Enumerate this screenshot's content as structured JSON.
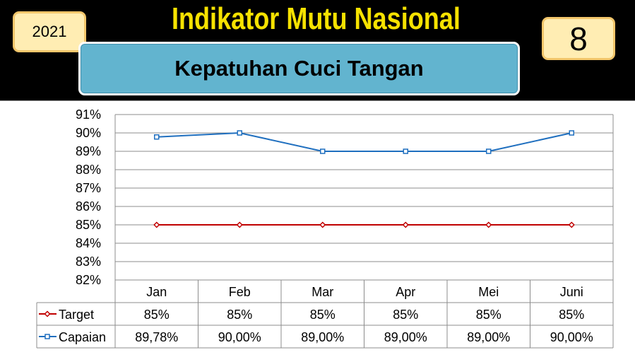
{
  "header": {
    "title": "Indikator Mutu Nasional",
    "year": "2021",
    "number": "8",
    "subtitle": "Kepatuhan Cuci Tangan"
  },
  "chart_data": {
    "type": "line",
    "categories": [
      "Jan",
      "Feb",
      "Mar",
      "Apr",
      "Mei",
      "Juni"
    ],
    "ylim": [
      82,
      91
    ],
    "yticks": [
      "82%",
      "83%",
      "84%",
      "85%",
      "86%",
      "87%",
      "88%",
      "89%",
      "90%",
      "91%"
    ],
    "grid": true,
    "legend": "data-table",
    "series": [
      {
        "name": "Target",
        "values": [
          85,
          85,
          85,
          85,
          85,
          85
        ],
        "labels": [
          "85%",
          "85%",
          "85%",
          "85%",
          "85%",
          "85%"
        ],
        "color": "#c00000",
        "marker": "diamond"
      },
      {
        "name": "Capaian",
        "values": [
          89.78,
          90,
          89,
          89,
          89,
          90
        ],
        "labels": [
          "89,78%",
          "90,00%",
          "89,00%",
          "89,00%",
          "89,00%",
          "90,00%"
        ],
        "color": "#1f6fbf",
        "marker": "square"
      }
    ]
  }
}
